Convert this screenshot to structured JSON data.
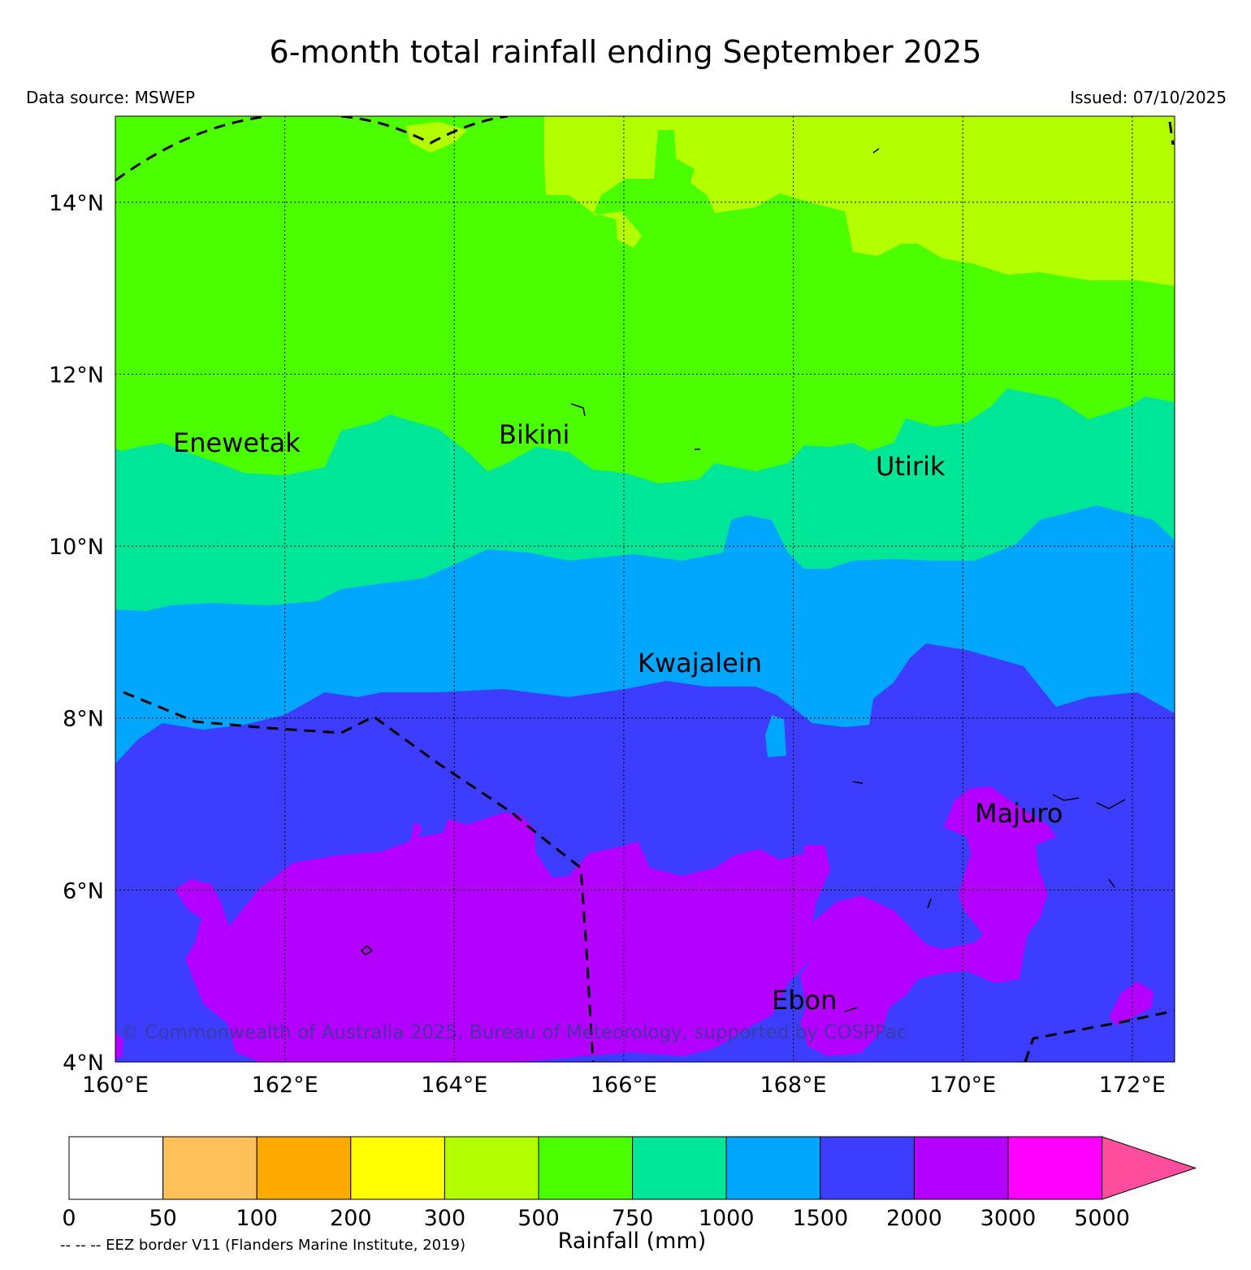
{
  "header": {
    "title": "6-month total rainfall ending September 2025",
    "source": "Data source: MSWEP",
    "issued": "Issued: 07/10/2025"
  },
  "map": {
    "lon_range": [
      160,
      172.5
    ],
    "lat_range": [
      4,
      15
    ],
    "lat_ticks": [
      "14°N",
      "12°N",
      "10°N",
      "8°N",
      "6°N",
      "4°N"
    ],
    "lon_ticks": [
      "160°E",
      "162°E",
      "164°E",
      "166°E",
      "168°E",
      "170°E",
      "172°E"
    ],
    "places": [
      "Enewetak",
      "Bikini",
      "Utirik",
      "Kwajalein",
      "Majuro",
      "Ebon"
    ],
    "copyright": "© Commonwealth of Australia 2025, Bureau of Meteorology, supported by COSPPac",
    "zone_colors": {
      "300-500": "#b3ff00",
      "500-750": "#4cff00",
      "750-1000": "#00e699",
      "1000-1500": "#00a6ff",
      "1500-2000": "#3d3dff",
      "2000-3000": "#b300ff"
    }
  },
  "colorbar": {
    "title": "Rainfall (mm)",
    "labels": [
      "0",
      "50",
      "100",
      "200",
      "300",
      "500",
      "750",
      "1000",
      "1500",
      "2000",
      "3000",
      "5000"
    ],
    "colors": [
      "#ffffff",
      "#ffbf59",
      "#ffaa00",
      "#ffff00",
      "#b3ff00",
      "#4cff00",
      "#00e699",
      "#00a6ff",
      "#3d3dff",
      "#b300ff",
      "#ff00ff"
    ],
    "extend_color": "#ff4d9e"
  },
  "legend": {
    "eez_note": "-- -- -- EEZ border V11 (Flanders Marine Institute, 2019)"
  }
}
